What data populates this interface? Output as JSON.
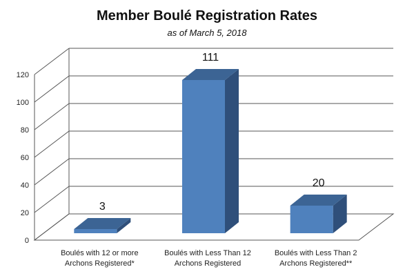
{
  "chart_data": {
    "type": "bar",
    "title": "Member Boulé Registration Rates",
    "subtitle": "as of March 5, 2018",
    "categories": [
      [
        "Boulés with 12 or more",
        "Archons Registered*"
      ],
      [
        "Boulés with Less Than 12",
        "Archons Registered"
      ],
      [
        "Boulés with Less Than 2",
        "Archons Registered**"
      ]
    ],
    "values": [
      3,
      111,
      20
    ],
    "data_labels": [
      "3",
      "111",
      "20"
    ],
    "ylim": [
      0,
      120
    ],
    "yticks": [
      "0",
      "20",
      "40",
      "60",
      "80",
      "100",
      "120"
    ],
    "grid": true,
    "style": "3d-column",
    "colors": {
      "front": "#4f81bd",
      "side": "#2f4f7a",
      "top": "#3c6494",
      "grid": "#555555"
    }
  }
}
